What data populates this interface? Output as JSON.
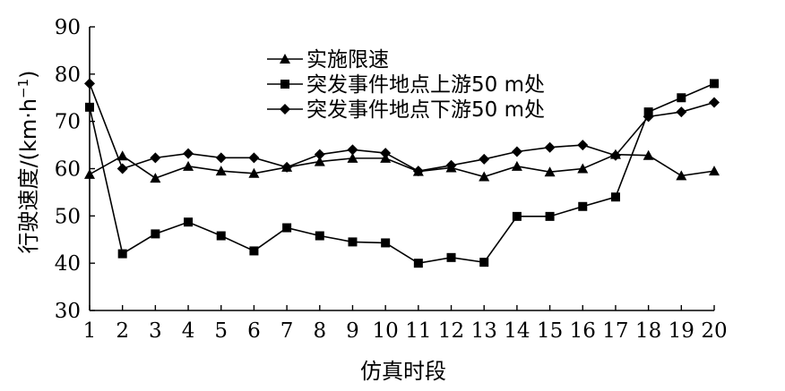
{
  "chart_data": {
    "type": "line",
    "xlabel": "仿真时段",
    "ylabel_main": "行驶速度/(km·h",
    "ylabel_sup": "−1",
    "ylabel_close": ")",
    "x": [
      1,
      2,
      3,
      4,
      5,
      6,
      7,
      8,
      9,
      10,
      11,
      12,
      13,
      14,
      15,
      16,
      17,
      18,
      19,
      20
    ],
    "xlim": [
      1,
      20
    ],
    "ylim": [
      30,
      90
    ],
    "yticks": [
      30,
      40,
      50,
      60,
      70,
      80,
      90
    ],
    "grid": false,
    "legend_position": "top-center",
    "series": [
      {
        "name": "实施限速",
        "marker": "triangle",
        "values": [
          58.8,
          62.7,
          58.0,
          60.5,
          59.5,
          59.0,
          60.3,
          61.5,
          62.2,
          62.2,
          59.4,
          60.2,
          58.3,
          60.5,
          59.3,
          60.0,
          63.0,
          62.8,
          58.5,
          59.5
        ]
      },
      {
        "name": "突发事件地点上游50 m处",
        "marker": "square",
        "values": [
          73.0,
          42.0,
          46.2,
          48.7,
          45.8,
          42.6,
          47.5,
          45.8,
          44.5,
          44.3,
          40.0,
          41.2,
          40.2,
          49.9,
          49.9,
          52.0,
          54.0,
          72.0,
          75.0,
          78.0
        ]
      },
      {
        "name": "突发事件地点下游50 m处",
        "marker": "diamond",
        "values": [
          78.0,
          60.0,
          62.3,
          63.2,
          62.3,
          62.3,
          60.3,
          63.0,
          64.0,
          63.3,
          59.5,
          60.7,
          62.0,
          63.6,
          64.5,
          65.0,
          62.8,
          71.0,
          72.0,
          74.0
        ]
      }
    ]
  }
}
